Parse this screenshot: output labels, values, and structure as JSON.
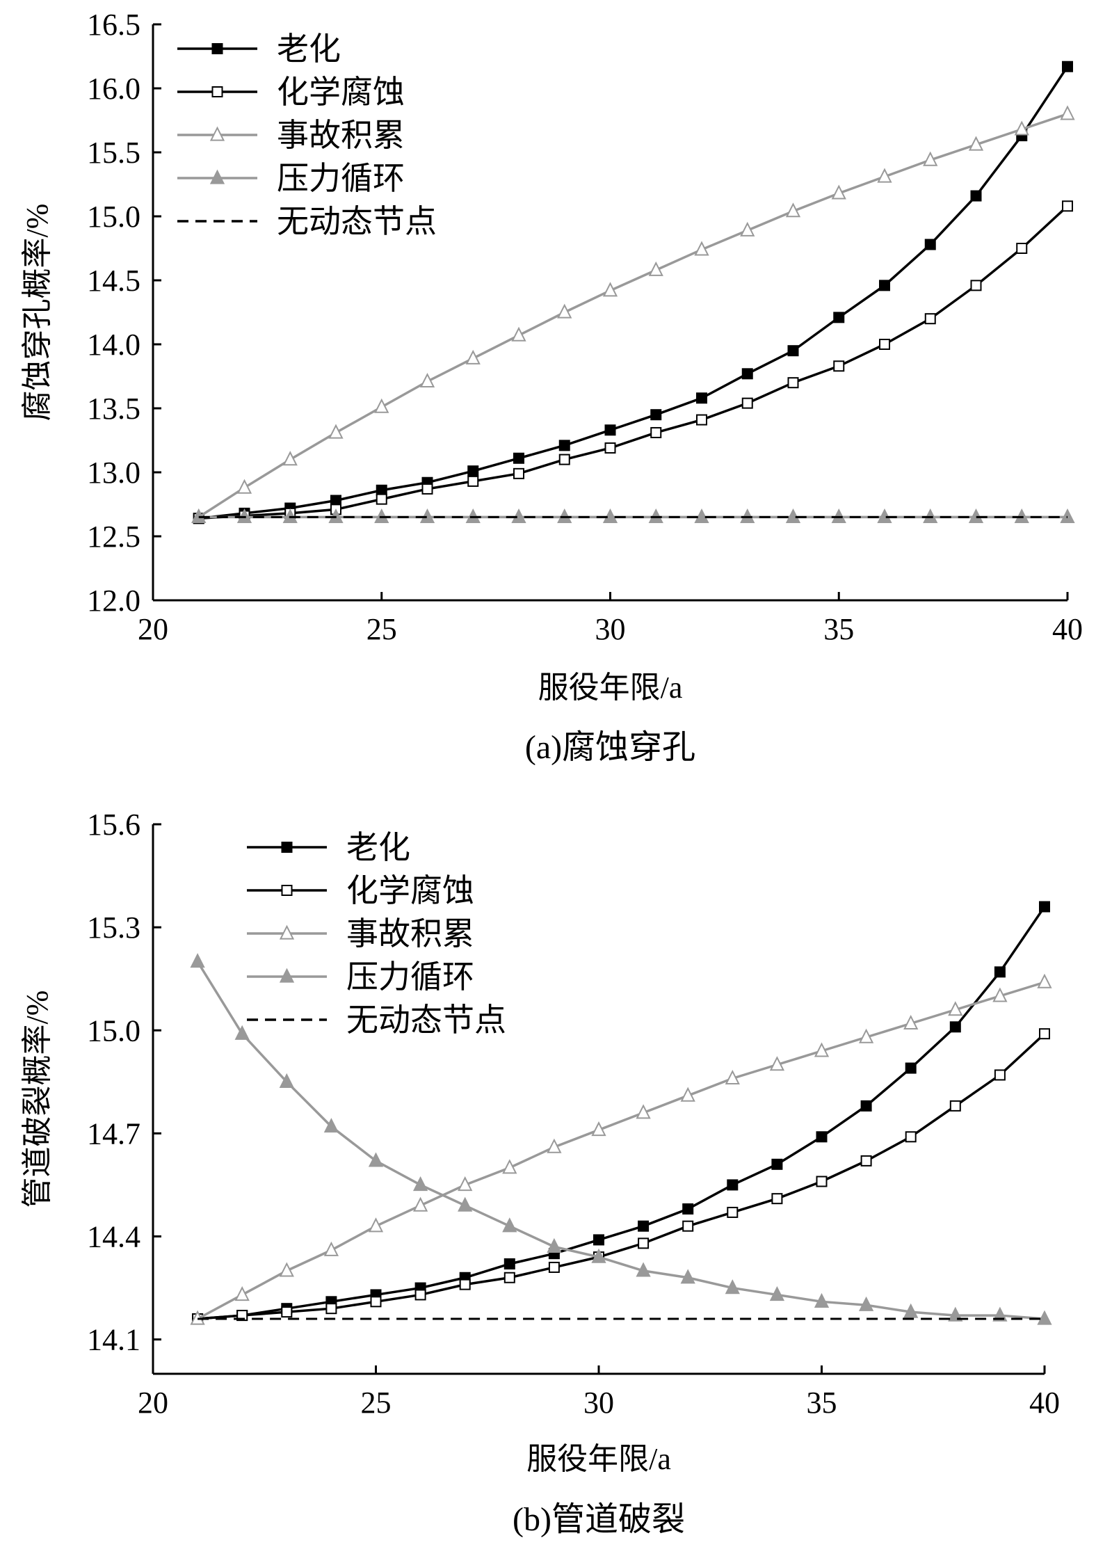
{
  "chart_data": [
    {
      "type": "line",
      "caption": "(a)腐蚀穿孔",
      "xlabel": "服役年限/a",
      "ylabel": "腐蚀穿孔概率/%",
      "xlim": [
        20,
        40
      ],
      "ylim": [
        12.0,
        16.5
      ],
      "xticks": [
        "20",
        "25",
        "30",
        "35",
        "40"
      ],
      "yticks": [
        "12.0",
        "12.5",
        "13.0",
        "13.5",
        "14.0",
        "14.5",
        "15.0",
        "15.5",
        "16.0",
        "16.5"
      ],
      "grid": false,
      "legend_position": "top-left",
      "x": [
        21,
        22,
        23,
        24,
        25,
        26,
        27,
        28,
        29,
        30,
        31,
        32,
        33,
        34,
        35,
        36,
        37,
        38,
        39,
        40
      ],
      "series": [
        {
          "name": "老化",
          "marker": "filled-square",
          "color": "#000000",
          "values": [
            12.64,
            12.68,
            12.72,
            12.78,
            12.86,
            12.92,
            13.01,
            13.11,
            13.21,
            13.33,
            13.45,
            13.58,
            13.77,
            13.95,
            14.21,
            14.46,
            14.78,
            15.16,
            15.63,
            16.17
          ]
        },
        {
          "name": "化学腐蚀",
          "marker": "open-square",
          "color": "#000000",
          "values": [
            12.64,
            12.66,
            12.68,
            12.71,
            12.79,
            12.87,
            12.93,
            12.99,
            13.1,
            13.19,
            13.31,
            13.41,
            13.54,
            13.7,
            13.83,
            14.0,
            14.2,
            14.46,
            14.75,
            15.08
          ]
        },
        {
          "name": "事故积累",
          "marker": "open-triangle",
          "color": "#999999",
          "values": [
            12.65,
            12.88,
            13.1,
            13.31,
            13.51,
            13.71,
            13.89,
            14.07,
            14.25,
            14.42,
            14.58,
            14.74,
            14.89,
            15.04,
            15.18,
            15.31,
            15.44,
            15.56,
            15.68,
            15.8
          ]
        },
        {
          "name": "压力循环",
          "marker": "filled-triangle",
          "color": "#999999",
          "values": [
            12.65,
            12.65,
            12.65,
            12.65,
            12.65,
            12.65,
            12.65,
            12.65,
            12.65,
            12.65,
            12.65,
            12.65,
            12.65,
            12.65,
            12.65,
            12.65,
            12.65,
            12.65,
            12.65,
            12.65
          ]
        },
        {
          "name": "无动态节点",
          "marker": "none",
          "line": "dashed",
          "color": "#000000",
          "values": [
            12.65,
            12.65,
            12.65,
            12.65,
            12.65,
            12.65,
            12.65,
            12.65,
            12.65,
            12.65,
            12.65,
            12.65,
            12.65,
            12.65,
            12.65,
            12.65,
            12.65,
            12.65,
            12.65,
            12.65
          ]
        }
      ]
    },
    {
      "type": "line",
      "caption": "(b)管道破裂",
      "xlabel": "服役年限/a",
      "ylabel": "管道破裂概率/%",
      "xlim": [
        20,
        40
      ],
      "ylim": [
        14.0,
        15.6
      ],
      "xticks": [
        "20",
        "25",
        "30",
        "35",
        "40"
      ],
      "yticks": [
        "14.1",
        "14.4",
        "14.7",
        "15.0",
        "15.3",
        "15.6"
      ],
      "grid": false,
      "legend_position": "top-left",
      "x": [
        21,
        22,
        23,
        24,
        25,
        26,
        27,
        28,
        29,
        30,
        31,
        32,
        33,
        34,
        35,
        36,
        37,
        38,
        39,
        40
      ],
      "series": [
        {
          "name": "老化",
          "marker": "filled-square",
          "color": "#000000",
          "values": [
            14.16,
            14.17,
            14.19,
            14.21,
            14.23,
            14.25,
            14.28,
            14.32,
            14.35,
            14.39,
            14.43,
            14.48,
            14.55,
            14.61,
            14.69,
            14.78,
            14.89,
            15.01,
            15.17,
            15.36
          ]
        },
        {
          "name": "化学腐蚀",
          "marker": "open-square",
          "color": "#000000",
          "values": [
            14.16,
            14.17,
            14.18,
            14.19,
            14.21,
            14.23,
            14.26,
            14.28,
            14.31,
            14.34,
            14.38,
            14.43,
            14.47,
            14.51,
            14.56,
            14.62,
            14.69,
            14.78,
            14.87,
            14.99
          ]
        },
        {
          "name": "事故积累",
          "marker": "open-triangle",
          "color": "#999999",
          "values": [
            14.16,
            14.23,
            14.3,
            14.36,
            14.43,
            14.49,
            14.55,
            14.6,
            14.66,
            14.71,
            14.76,
            14.81,
            14.86,
            14.9,
            14.94,
            14.98,
            15.02,
            15.06,
            15.1,
            15.14
          ]
        },
        {
          "name": "压力循环",
          "marker": "filled-triangle",
          "color": "#999999",
          "values": [
            15.2,
            14.99,
            14.85,
            14.72,
            14.62,
            14.55,
            14.49,
            14.43,
            14.37,
            14.34,
            14.3,
            14.28,
            14.25,
            14.23,
            14.21,
            14.2,
            14.18,
            14.17,
            14.17,
            14.16
          ]
        },
        {
          "name": "无动态节点",
          "marker": "none",
          "line": "dashed",
          "color": "#000000",
          "values": [
            14.16,
            14.16,
            14.16,
            14.16,
            14.16,
            14.16,
            14.16,
            14.16,
            14.16,
            14.16,
            14.16,
            14.16,
            14.16,
            14.16,
            14.16,
            14.16,
            14.16,
            14.16,
            14.16,
            14.16
          ]
        }
      ]
    }
  ]
}
